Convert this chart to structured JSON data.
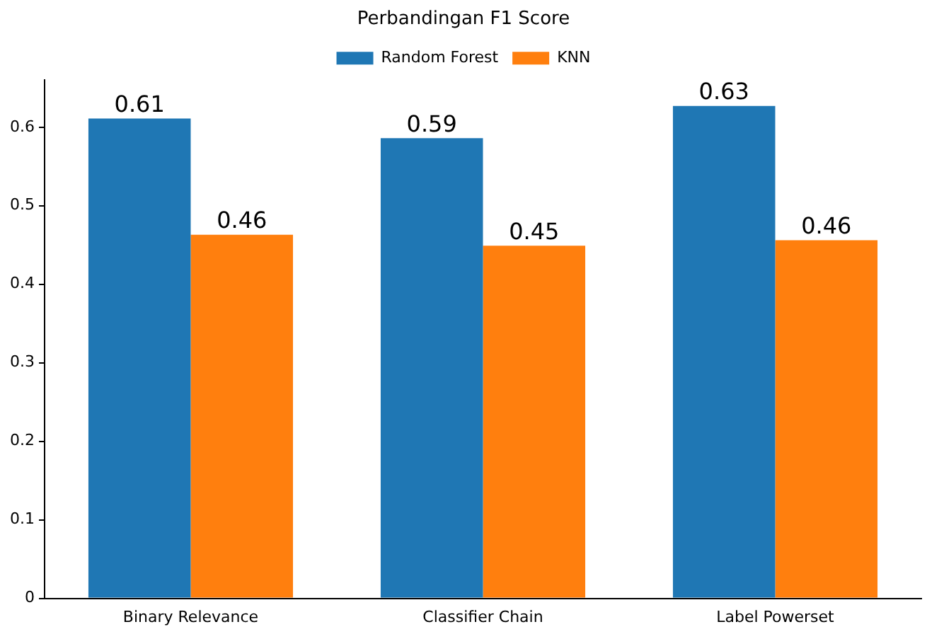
{
  "chart_data": {
    "type": "bar",
    "title": "Perbandingan F1 Score",
    "categories": [
      "Binary Relevance",
      "Classifier Chain",
      "Label Powerset"
    ],
    "series": [
      {
        "name": "Random Forest",
        "color": "#1f77b4",
        "values": [
          0.611,
          0.586,
          0.627
        ],
        "value_labels": [
          "0.61",
          "0.59",
          "0.63"
        ]
      },
      {
        "name": "KNN",
        "color": "#ff7f0e",
        "values": [
          0.463,
          0.449,
          0.456
        ],
        "value_labels": [
          "0.46",
          "0.45",
          "0.46"
        ]
      }
    ],
    "ylim": [
      0,
      0.66
    ],
    "yticks": [
      0,
      0.1,
      0.2,
      0.3,
      0.4,
      0.5,
      0.6
    ],
    "grid": false,
    "legend": "top"
  }
}
